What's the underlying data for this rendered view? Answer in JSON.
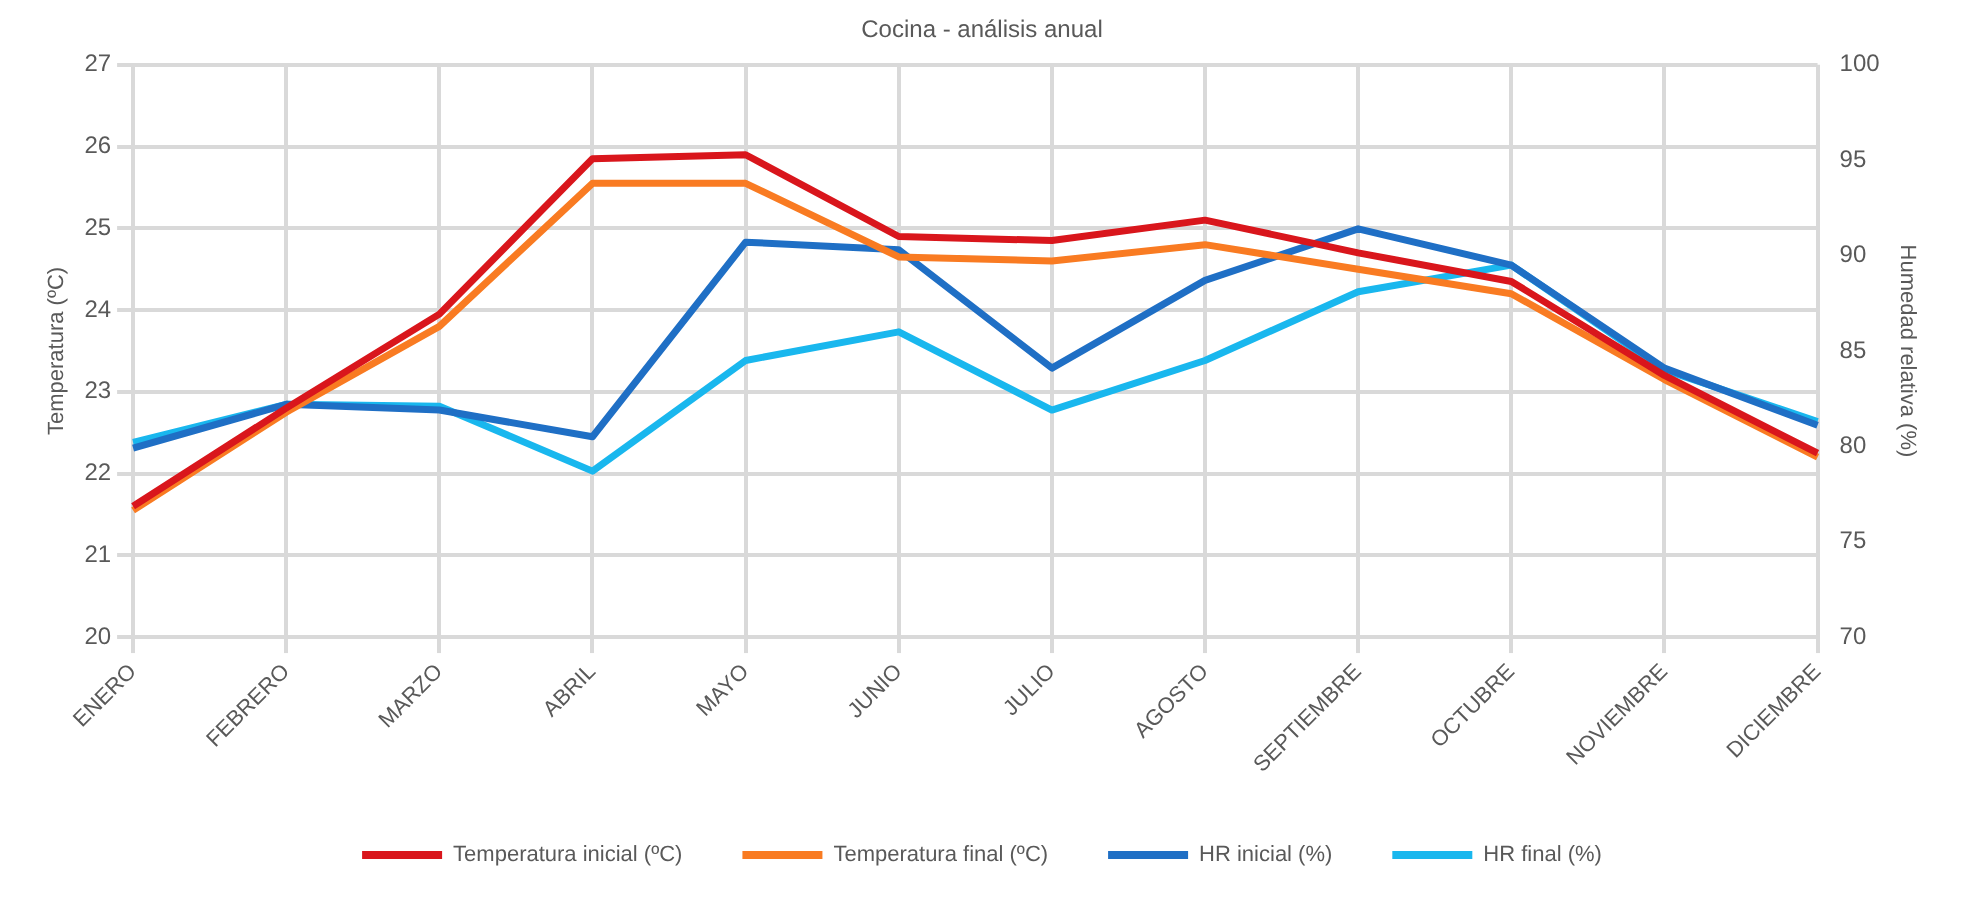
{
  "chart_data": {
    "type": "line",
    "title": "Cocina - análisis anual",
    "ylabel": "Temperatura (ºC)",
    "y2label": "Humedad relativa (%)",
    "categories": [
      "ENERO",
      "FEBRERO",
      "MARZO",
      "ABRIL",
      "MAYO",
      "JUNIO",
      "JULIO",
      "AGOSTO",
      "SEPTIEMBRE",
      "OCTUBRE",
      "NOVIEMBRE",
      "DICIEMBRE"
    ],
    "series": [
      {
        "name": "Temperatura inicial (ºC)",
        "color": "#d9161c",
        "values": [
          21.6,
          22.8,
          23.95,
          25.85,
          25.9,
          24.9,
          24.85,
          25.1,
          24.7,
          24.35,
          23.2,
          22.25
        ]
      },
      {
        "name": "Temperatura final (ºC)",
        "color": "#f97b22",
        "values": [
          21.55,
          22.75,
          23.8,
          25.55,
          25.55,
          24.65,
          24.6,
          24.8,
          24.5,
          24.2,
          23.15,
          22.2
        ]
      },
      {
        "name": "HR inicial (%)",
        "color": "#1f6fc5",
        "axis": "y2",
        "values": [
          79.9,
          82.2,
          81.9,
          80.5,
          90.7,
          90.3,
          84.1,
          88.7,
          91.4,
          89.5,
          84.1,
          81.1
        ]
      },
      {
        "name": "HR final (%)",
        "color": "#19b7ee",
        "axis": "y2",
        "values": [
          80.2,
          82.2,
          82.1,
          78.7,
          84.5,
          86.0,
          81.9,
          84.5,
          88.1,
          89.5,
          84.0,
          81.3
        ]
      }
    ],
    "ylim": [
      20,
      27
    ],
    "yticks": [
      20,
      21,
      22,
      23,
      24,
      25,
      26,
      27
    ],
    "y2lim": [
      70,
      100
    ],
    "y2ticks": [
      70,
      75,
      80,
      85,
      90,
      95,
      100
    ],
    "grid": true,
    "legend": "bottom",
    "marker": "none",
    "line_style": "solid"
  }
}
